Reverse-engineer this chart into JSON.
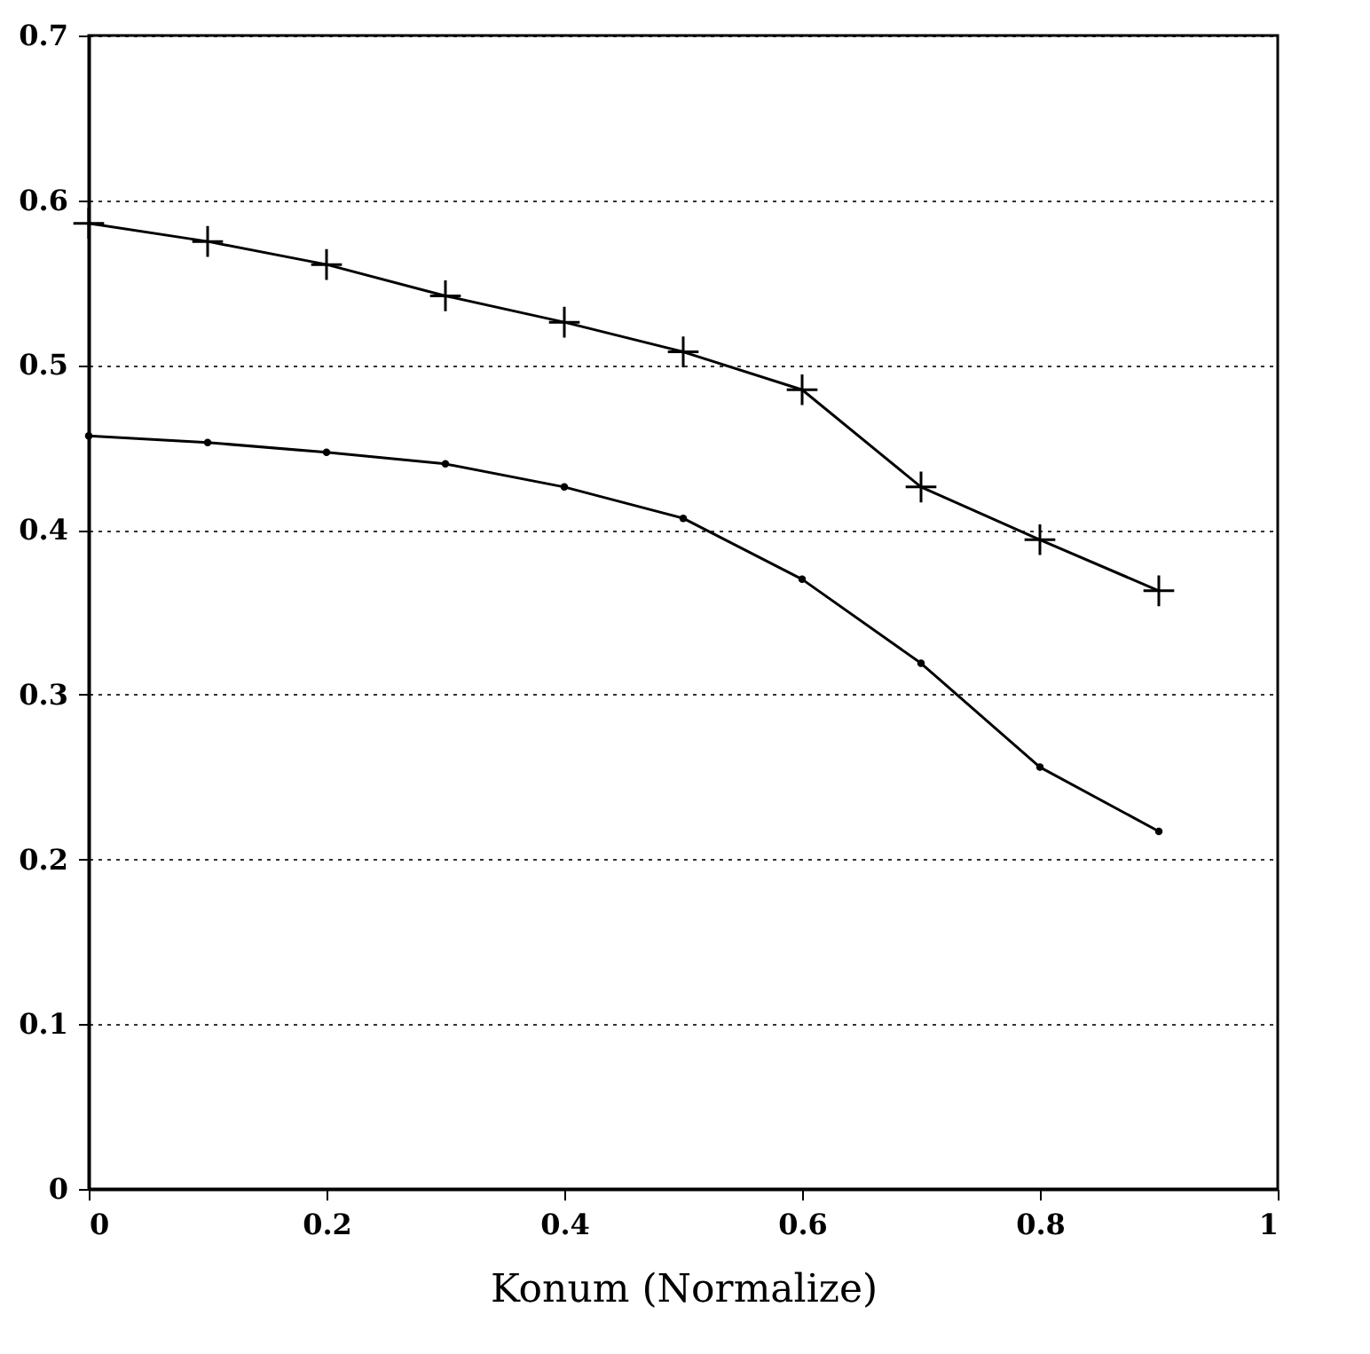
{
  "chart_data": {
    "type": "line",
    "xlabel": "Konum (Normalize)",
    "x": [
      0,
      0.1,
      0.2,
      0.3,
      0.4,
      0.5,
      0.6,
      0.7,
      0.8,
      0.9
    ],
    "series": [
      {
        "color": "#000000",
        "marker": "cross",
        "values": [
          0.586,
          0.575,
          0.561,
          0.542,
          0.526,
          0.508,
          0.485,
          0.426,
          0.394,
          0.363
        ]
      },
      {
        "color": "#000000",
        "marker": "circle",
        "values": [
          0.457,
          0.453,
          0.447,
          0.44,
          0.426,
          0.407,
          0.37,
          0.319,
          0.256,
          0.217
        ]
      }
    ],
    "xlim": [
      0,
      1
    ],
    "xticks": [
      0,
      0.2,
      0.4,
      0.6,
      0.8,
      1
    ],
    "ylim": [
      0,
      0.7
    ],
    "yticks": [
      0,
      0.1,
      0.2,
      0.3,
      0.4,
      0.5,
      0.6,
      0.7
    ],
    "grid": "y",
    "line_style": "solid"
  }
}
